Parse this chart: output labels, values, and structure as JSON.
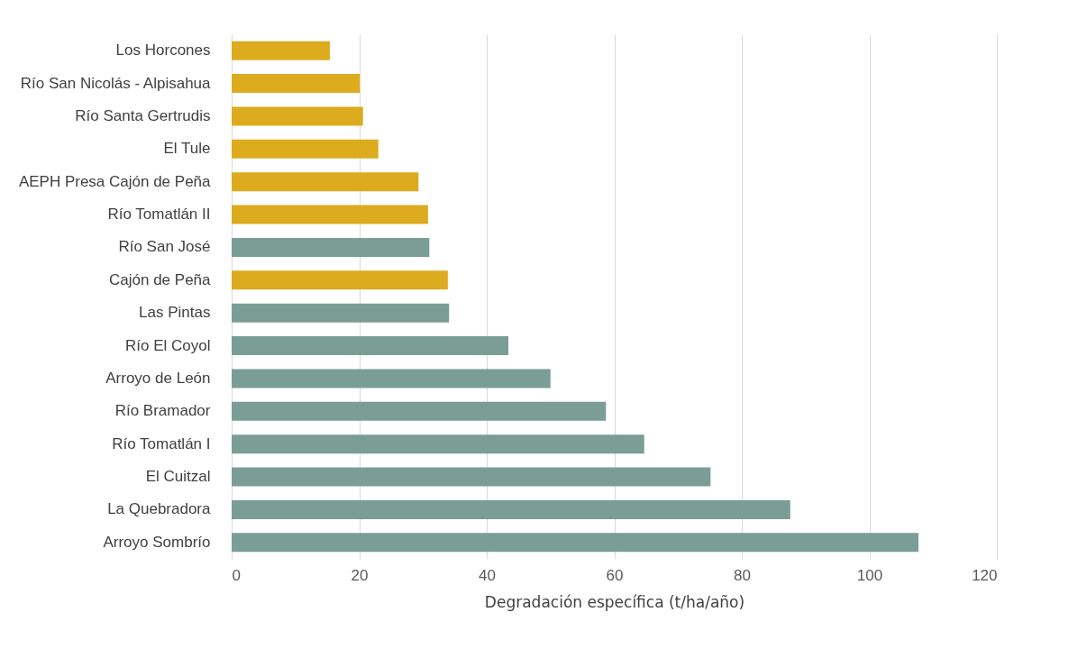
{
  "chart_data": {
    "type": "bar",
    "orientation": "horizontal",
    "xlabel": "Degradación específica (t/ha/año)",
    "categories": [
      "Los Horcones",
      "Río San Nicolás - Alpisahua",
      "Río Santa Gertrudis",
      "El Tule",
      "AEPH Presa Cajón de Peña",
      "Río Tomatlán II",
      "Río San José",
      "Cajón de Peña",
      "Las Pintas",
      "Río El Coyol",
      "Arroyo de León",
      "Río Bramador",
      "Río Tomatlán I",
      "El Cuitzal",
      "La Quebradora",
      "Arroyo Sombrío"
    ],
    "values": [
      15.4,
      20.1,
      20.6,
      23.0,
      29.3,
      30.8,
      31.0,
      33.9,
      34.1,
      43.4,
      50.0,
      58.7,
      64.7,
      75.1,
      87.6,
      107.7
    ],
    "colors": [
      "#dcab1e",
      "#dcab1e",
      "#dcab1e",
      "#dcab1e",
      "#dcab1e",
      "#dcab1e",
      "#7a9e96",
      "#dcab1e",
      "#7a9e96",
      "#7a9e96",
      "#7a9e96",
      "#7a9e96",
      "#7a9e96",
      "#7a9e96",
      "#7a9e96",
      "#7a9e96"
    ],
    "xlim": [
      0,
      120
    ],
    "xticks": [
      0,
      20,
      40,
      60,
      80,
      100,
      120
    ],
    "grid": "x"
  }
}
